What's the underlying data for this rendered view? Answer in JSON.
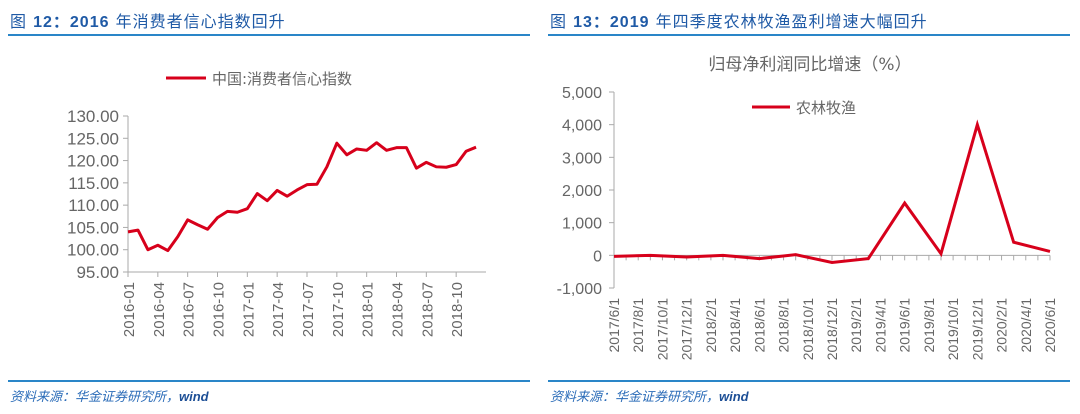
{
  "left": {
    "title_prefix": "图 ",
    "title_num": "12：2016",
    "title_rest": " 年消费者信心指数回升",
    "source_cn": "资料来源：华金证券研究所，",
    "source_wind": "wind"
  },
  "right": {
    "title_prefix": "图 ",
    "title_num": "13：2019",
    "title_rest": " 年四季度农林牧渔盈利增速大幅回升",
    "source_cn": "资料来源：华金证券研究所，",
    "source_wind": "wind"
  },
  "colors": {
    "line": "#d7001b",
    "rule": "#2a86c8",
    "title": "#1f5aa6",
    "axis": "#aaaaaa",
    "text": "#666666"
  },
  "chart_data": [
    {
      "type": "line",
      "title": "",
      "legend": [
        "中国:消费者信心指数"
      ],
      "legend_position": "top",
      "xlabel": "",
      "ylabel": "",
      "ylim": [
        95,
        130
      ],
      "yticks": [
        "130.00",
        "125.00",
        "120.00",
        "115.00",
        "110.00",
        "105.00",
        "100.00",
        "95.00"
      ],
      "xtick_labels": [
        "2016-01",
        "2016-04",
        "2016-07",
        "2016-10",
        "2017-01",
        "2017-04",
        "2017-07",
        "2017-10",
        "2018-01",
        "2018-04",
        "2018-07",
        "2018-10"
      ],
      "grid": false,
      "x": [
        "2016-01",
        "2016-02",
        "2016-03",
        "2016-04",
        "2016-05",
        "2016-06",
        "2016-07",
        "2016-08",
        "2016-09",
        "2016-10",
        "2016-11",
        "2016-12",
        "2017-01",
        "2017-02",
        "2017-03",
        "2017-04",
        "2017-05",
        "2017-06",
        "2017-07",
        "2017-08",
        "2017-09",
        "2017-10",
        "2017-11",
        "2017-12",
        "2018-01",
        "2018-02",
        "2018-03",
        "2018-04",
        "2018-05",
        "2018-06",
        "2018-07",
        "2018-08",
        "2018-09",
        "2018-10",
        "2018-11",
        "2018-12"
      ],
      "series": [
        {
          "name": "中国:消费者信心指数",
          "values": [
            104.0,
            104.4,
            100.0,
            101.0,
            99.8,
            102.9,
            106.7,
            105.6,
            104.6,
            107.2,
            108.6,
            108.4,
            109.2,
            112.6,
            111.0,
            113.3,
            112.0,
            113.4,
            114.6,
            114.7,
            118.6,
            123.9,
            121.3,
            122.6,
            122.3,
            124.0,
            122.3,
            122.9,
            122.9,
            118.3,
            119.6,
            118.6,
            118.5,
            119.1,
            122.1,
            123.0
          ]
        }
      ]
    },
    {
      "type": "line",
      "title": "归母净利润同比增速（%）",
      "legend": [
        "农林牧渔"
      ],
      "legend_position": "top",
      "xlabel": "",
      "ylabel": "",
      "ylim": [
        -1000,
        5000
      ],
      "yticks": [
        "5,000",
        "4,000",
        "3,000",
        "2,000",
        "1,000",
        "0",
        "-1,000"
      ],
      "xtick_labels": [
        "2017/6/1",
        "2017/8/1",
        "2017/10/1",
        "2017/12/1",
        "2018/2/1",
        "2018/4/1",
        "2018/6/1",
        "2018/8/1",
        "2018/10/1",
        "2018/12/1",
        "2019/2/1",
        "2019/4/1",
        "2019/6/1",
        "2019/8/1",
        "2019/10/1",
        "2019/12/1",
        "2020/2/1",
        "2020/4/1",
        "2020/6/1"
      ],
      "grid": false,
      "x": [
        "2017/6",
        "2017/9",
        "2017/12",
        "2018/3",
        "2018/6",
        "2018/9",
        "2018/12",
        "2019/3",
        "2019/6",
        "2019/9",
        "2019/12",
        "2020/3",
        "2020/6"
      ],
      "series": [
        {
          "name": "农林牧渔",
          "values": [
            -30,
            0,
            -50,
            0,
            -100,
            20,
            -220,
            -100,
            1600,
            50,
            4000,
            400,
            120
          ]
        }
      ]
    }
  ]
}
